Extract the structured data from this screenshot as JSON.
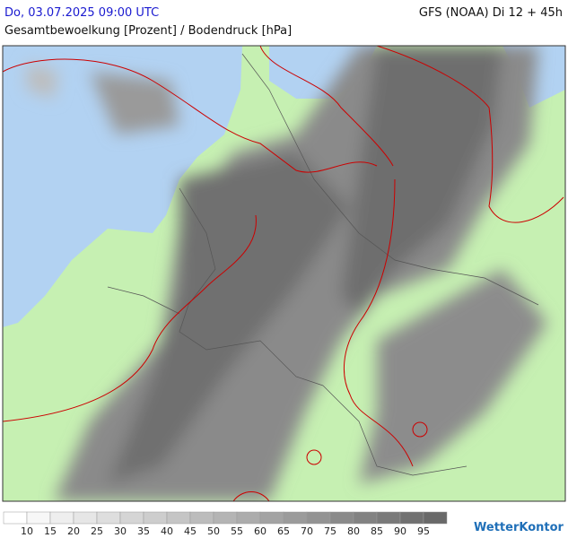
{
  "header": {
    "left_title": "Do, 03.07.2025 09:00 UTC",
    "subtitle": "Gesamtbewoelkung [Prozent] / Bodendruck [hPa]",
    "right_title": "GFS (NOAA) Di 12 + 45h"
  },
  "legend": {
    "thresholds": [
      10,
      15,
      20,
      25,
      30,
      35,
      40,
      45,
      50,
      55,
      60,
      65,
      70,
      75,
      80,
      85,
      90,
      95
    ]
  },
  "logo": {
    "text": "WetterKontor"
  }
}
